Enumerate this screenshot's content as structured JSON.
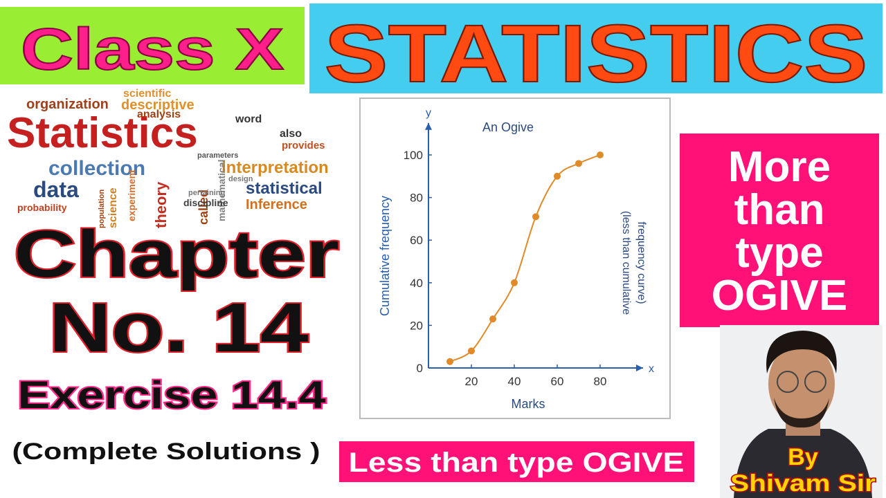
{
  "header": {
    "left": "Class X",
    "right": "STATISTICS"
  },
  "word_cloud": [
    "organization",
    "descriptive",
    "scientific",
    "Statistics",
    "collection",
    "data",
    "interpretation",
    "statistical",
    "Inference",
    "probability",
    "theory",
    "science",
    "called",
    "mathematical",
    "experiment",
    "discipline",
    "word",
    "also",
    "provides",
    "parameters",
    "pertaining",
    "analysis",
    "design",
    "population"
  ],
  "chapter": {
    "line1": "Chapter",
    "line2": "No. 14",
    "exercise": "Exercise 14.4",
    "note": "(Complete Solutions )"
  },
  "chart_data": {
    "type": "line",
    "title": "An Ogive",
    "x_label": "Marks",
    "y_label": "Cumulative frequency",
    "annotation": [
      "(less than cumulative",
      "frequency curve)"
    ],
    "x_axis_name": "x",
    "y_axis_name": "y",
    "x": [
      10,
      20,
      30,
      40,
      50,
      60,
      70,
      80
    ],
    "values": [
      3,
      8,
      23,
      40,
      71,
      90,
      96,
      100
    ],
    "color": "#e08a2a",
    "xlim": [
      0,
      100
    ],
    "ylim": [
      0,
      115
    ],
    "xticks": [
      20,
      40,
      60,
      80
    ],
    "yticks": [
      0,
      20,
      40,
      60,
      80,
      100
    ]
  },
  "side_box": {
    "lines": [
      "More",
      "than",
      "type",
      "OGIVE"
    ]
  },
  "caption": "Less than type OGIVE",
  "author": {
    "lines": [
      "By",
      "Shivam Sir"
    ]
  }
}
